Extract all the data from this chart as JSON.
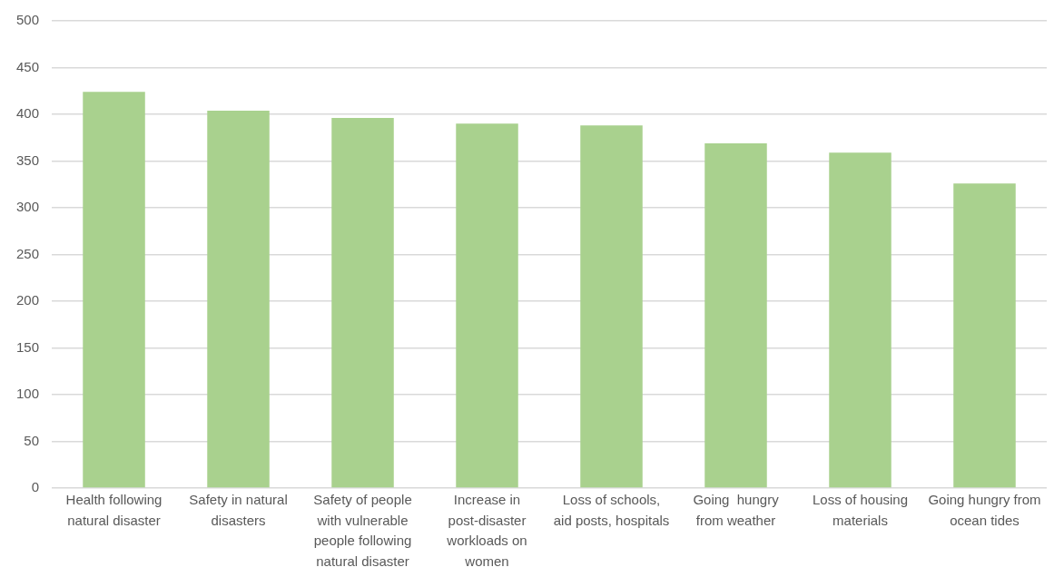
{
  "chart_data": {
    "type": "bar",
    "categories": [
      "Health following natural disaster",
      "Safety in natural disasters",
      "Safety of people with vulnerable people following natural disaster",
      "Increase in post-disaster workloads on women",
      "Loss of schools, aid posts, hospitals",
      "Going  hungry from weather",
      "Loss of housing materials",
      "Going hungry from ocean tides"
    ],
    "values": [
      424,
      404,
      396,
      390,
      388,
      369,
      359,
      326
    ],
    "color": "#a9d18e",
    "ylim": [
      0,
      500
    ],
    "yticks": [
      0,
      50,
      100,
      150,
      200,
      250,
      300,
      350,
      400,
      450,
      500
    ],
    "grid": "y"
  }
}
